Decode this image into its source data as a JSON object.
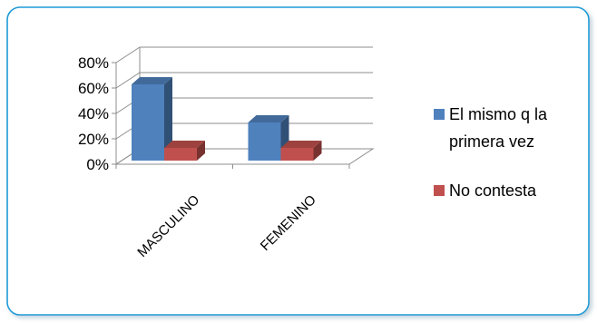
{
  "chart_data": {
    "type": "bar",
    "subtype": "3d-clustered-column",
    "categories": [
      "MASCULINO",
      "FEMENINO"
    ],
    "series": [
      {
        "name": "El mismo q la primera vez",
        "values": [
          0.6,
          0.3
        ],
        "color": "#4F81BD"
      },
      {
        "name": "No contesta",
        "values": [
          0.1,
          0.1
        ],
        "color": "#C0504D"
      }
    ],
    "y_ticks": [
      "0%",
      "20%",
      "40%",
      "60%",
      "80%"
    ],
    "ylim": [
      0,
      0.8
    ],
    "grid": true,
    "legend_position": "right",
    "frame_color": "#1F9BD7"
  }
}
